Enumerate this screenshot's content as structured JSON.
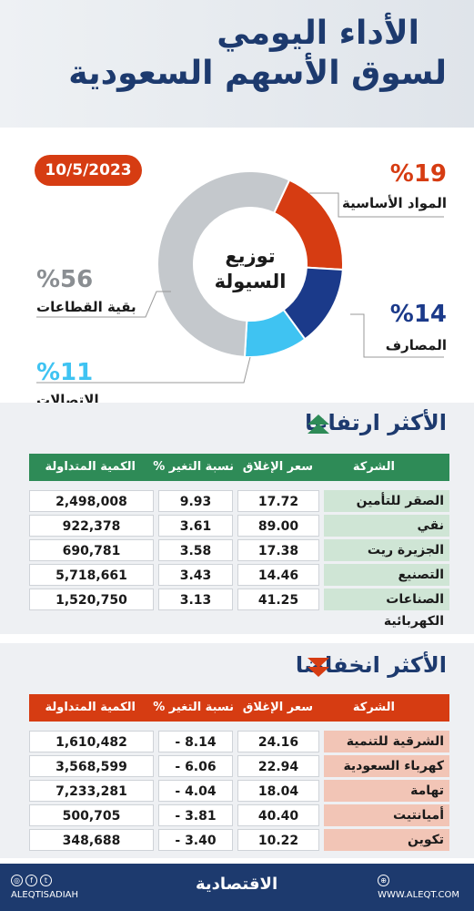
{
  "header": {
    "title_line1": "الأداء اليومي",
    "title_line2": "لسوق الأسهم السعودية"
  },
  "date": "10/5/2023",
  "chart_data": {
    "type": "pie",
    "center_label_line1": "توزيع",
    "center_label_line2": "السيولة",
    "slices": [
      {
        "label": "المواد الأساسية",
        "value": 19,
        "display": "%19",
        "color": "#d63c12"
      },
      {
        "label": "المصارف",
        "value": 14,
        "display": "%14",
        "color": "#1b3a8a"
      },
      {
        "label": "الاتصالات",
        "value": 11,
        "display": "%11",
        "color": "#3fc3f2"
      },
      {
        "label": "بقية القطاعات",
        "value": 56,
        "display": "%56",
        "color": "#c4c8cc"
      }
    ]
  },
  "gainers": {
    "title": "الأكثر ارتفاعا",
    "header_color": "#2e8b57",
    "headers": {
      "company": "الشركة",
      "close": "سعر الإغلاق",
      "change": "نسبة التغير %",
      "volume": "الكمية المتداولة"
    },
    "rows": [
      {
        "company": "الصقر للتأمين",
        "close": "17.72",
        "change": "9.93",
        "volume": "2,498,008"
      },
      {
        "company": "نقي",
        "close": "89.00",
        "change": "3.61",
        "volume": "922,378"
      },
      {
        "company": "الجزيرة ريت",
        "close": "17.38",
        "change": "3.58",
        "volume": "690,781"
      },
      {
        "company": "التصنيع",
        "close": "14.46",
        "change": "3.43",
        "volume": "5,718,661"
      },
      {
        "company": "الصناعات الكهربائية",
        "close": "41.25",
        "change": "3.13",
        "volume": "1,520,750"
      }
    ]
  },
  "losers": {
    "title": "الأكثر انخفاضا",
    "header_color": "#d63c12",
    "headers": {
      "company": "الشركة",
      "close": "سعر الإغلاق",
      "change": "نسبة التغير %",
      "volume": "الكمية المتداولة"
    },
    "rows": [
      {
        "company": "الشرقية للتنمية",
        "close": "24.16",
        "change": "8.14 -",
        "volume": "1,610,482"
      },
      {
        "company": "كهرباء السعودية",
        "close": "22.94",
        "change": "6.06 -",
        "volume": "3,568,599"
      },
      {
        "company": "تهامة",
        "close": "18.04",
        "change": "4.04 -",
        "volume": "7,233,281"
      },
      {
        "company": "أميانتيت",
        "close": "40.40",
        "change": "3.81 -",
        "volume": "500,705"
      },
      {
        "company": "تكوين",
        "close": "10.22",
        "change": "3.40 -",
        "volume": "348,688"
      }
    ]
  },
  "footer": {
    "handle": "ALEQTISADIAH",
    "logo": "الاقتصادية",
    "site": "WWW.ALEQT.COM"
  }
}
